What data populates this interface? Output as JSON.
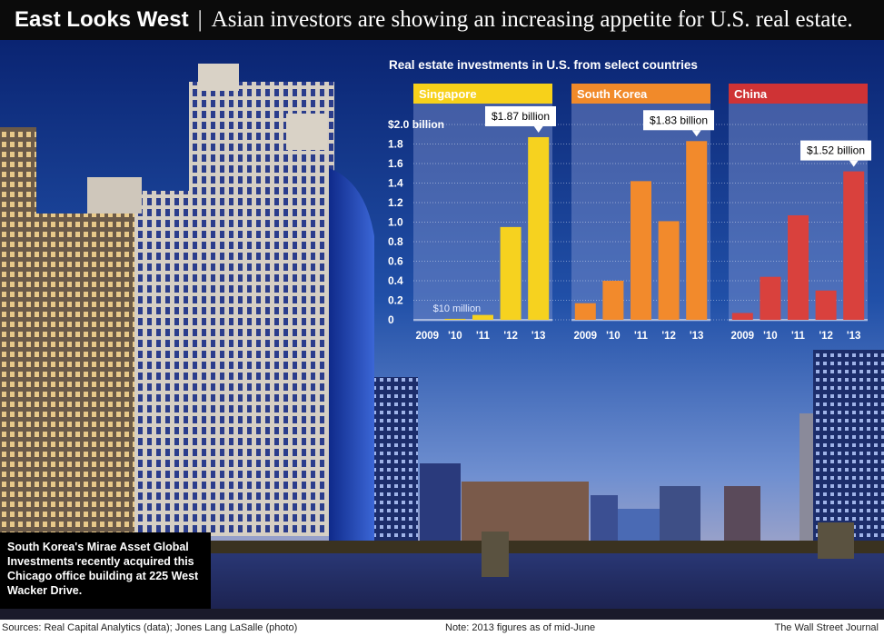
{
  "header": {
    "title": "East Looks West",
    "separator": "|",
    "subtitle": "Asian investors are showing an increasing appetite for U.S. real estate."
  },
  "caption": "South Korea's Mirae Asset Global Investments recently acquired this Chicago office building at 225 West Wacker Drive.",
  "footer": {
    "sources": "Sources: Real Capital Analytics (data); Jones Lang LaSalle (photo)",
    "note": "Note: 2013 figures as of mid-June",
    "credit": "The Wall Street Journal"
  },
  "chart_data": {
    "type": "bar",
    "title": "Real estate investments in U.S. from select countries",
    "ylim": [
      0,
      2.0
    ],
    "yticks": [
      "$2.0 billion",
      "1.8",
      "1.6",
      "1.4",
      "1.2",
      "1.0",
      "0.8",
      "0.6",
      "0.4",
      "0.2",
      "0"
    ],
    "ytick_values": [
      2.0,
      1.8,
      1.6,
      1.4,
      1.2,
      1.0,
      0.8,
      0.6,
      0.4,
      0.2,
      0
    ],
    "categories": [
      "2009",
      "'10",
      "'11",
      "'12",
      "'13"
    ],
    "grid": true,
    "panels": [
      {
        "name": "Singapore",
        "color": "#f6d21f",
        "header_color": "#f7d11a",
        "values": [
          0.0,
          0.01,
          0.05,
          0.95,
          1.87
        ],
        "annotations": [
          {
            "index": 4,
            "text": "$1.87 billion",
            "style": "callout"
          },
          {
            "index": 1,
            "text": "$10 million",
            "style": "plain"
          }
        ]
      },
      {
        "name": "South Korea",
        "color": "#f28a2c",
        "header_color": "#f18a2a",
        "values": [
          0.17,
          0.4,
          1.42,
          1.01,
          1.83
        ],
        "annotations": [
          {
            "index": 4,
            "text": "$1.83 billion",
            "style": "callout"
          }
        ]
      },
      {
        "name": "China",
        "color": "#d9413d",
        "header_color": "#cf3335",
        "values": [
          0.07,
          0.44,
          1.07,
          0.3,
          1.52
        ],
        "annotations": [
          {
            "index": 4,
            "text": "$1.52 billion",
            "style": "callout"
          }
        ]
      }
    ]
  }
}
